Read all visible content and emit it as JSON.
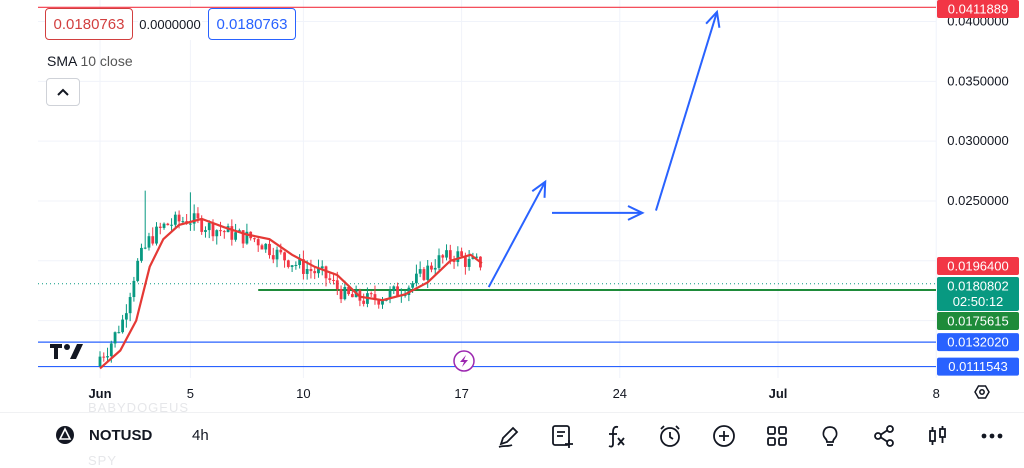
{
  "legend": {
    "value_left": "0.0180763",
    "value_mid": "0.0000000",
    "value_right": "0.0180763",
    "indicator_name": "SMA",
    "indicator_params": "10 close"
  },
  "toolbar": {
    "symbol": "NOTUSD",
    "timeframe": "4h",
    "ghost_top": "BABYDOGEUS",
    "ghost_bottom": "SPY"
  },
  "chart_data": {
    "type": "candlestick",
    "title": "",
    "xlabel": "",
    "ylabel": "",
    "x_ticks": [
      {
        "label": "Jun",
        "date": "2024-06-01"
      },
      {
        "label": "5",
        "date": "2024-06-05"
      },
      {
        "label": "10",
        "date": "2024-06-10"
      },
      {
        "label": "17",
        "date": "2024-06-17"
      },
      {
        "label": "24",
        "date": "2024-06-24"
      },
      {
        "label": "Jul",
        "date": "2024-07-01"
      },
      {
        "label": "8",
        "date": "2024-07-08"
      }
    ],
    "y_ticks": [
      "0.0400000",
      "0.0350000",
      "0.0300000",
      "0.0250000"
    ],
    "ylim": [
      0.0102,
      0.0418
    ],
    "price_labels": [
      {
        "value": 0.0411889,
        "text": "0.0411889",
        "color": "#f23645"
      },
      {
        "value": 0.01964,
        "text": "0.0196400",
        "color": "#f23645"
      },
      {
        "value": 0.0180802,
        "text": "0.0180802",
        "sub": "02:50:12",
        "color": "#089981"
      },
      {
        "value": 0.0175615,
        "text": "0.0175615",
        "color": "#1e8b3a"
      },
      {
        "value": 0.013202,
        "text": "0.0132020",
        "color": "#2962ff"
      },
      {
        "value": 0.0111543,
        "text": "0.0111543",
        "color": "#2962ff"
      }
    ],
    "horizontal_lines": [
      {
        "value": 0.0411889,
        "color": "#f23645"
      },
      {
        "value": 0.0175615,
        "color": "#1e8b3a",
        "from_date": "2024-06-08"
      },
      {
        "value": 0.013202,
        "color": "#2962ff"
      },
      {
        "value": 0.0111543,
        "color": "#2962ff"
      }
    ],
    "current_price": 0.0180802,
    "colors": {
      "up": "#089981",
      "down": "#f23645",
      "sma": "#e53935",
      "arrow": "#2962ff"
    },
    "sma_path": [
      [
        0.0,
        0.011
      ],
      [
        0.9,
        0.0125
      ],
      [
        1.6,
        0.015
      ],
      [
        2.2,
        0.0195
      ],
      [
        2.8,
        0.0218
      ],
      [
        3.5,
        0.023
      ],
      [
        4.5,
        0.0235
      ],
      [
        5.5,
        0.0228
      ],
      [
        6.5,
        0.0222
      ],
      [
        7.5,
        0.0218
      ],
      [
        8.5,
        0.0205
      ],
      [
        9.5,
        0.0195
      ],
      [
        10.5,
        0.0188
      ],
      [
        11.5,
        0.017
      ],
      [
        12.5,
        0.0167
      ],
      [
        13.5,
        0.0172
      ],
      [
        14.5,
        0.0182
      ],
      [
        15.5,
        0.02
      ],
      [
        16.4,
        0.0205
      ],
      [
        16.9,
        0.0198
      ]
    ],
    "arrows": [
      {
        "points": [
          [
            17.2,
            0.0178
          ],
          [
            19.7,
            0.0266
          ]
        ]
      },
      {
        "points": [
          [
            20.0,
            0.024
          ],
          [
            24.0,
            0.024
          ]
        ]
      },
      {
        "points": [
          [
            24.6,
            0.0242
          ],
          [
            27.3,
            0.0408
          ]
        ]
      }
    ]
  }
}
